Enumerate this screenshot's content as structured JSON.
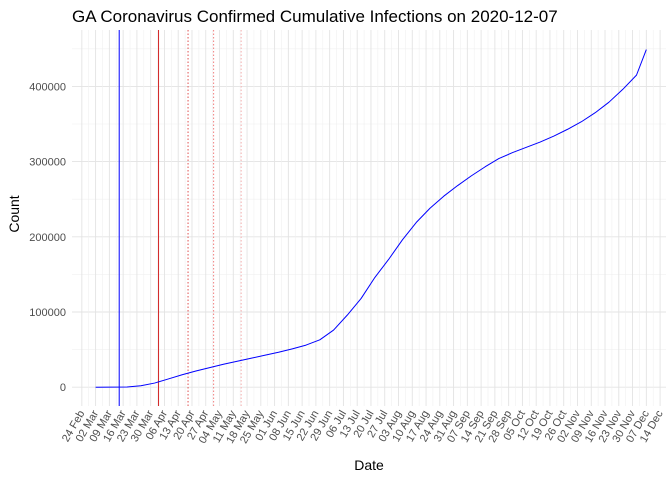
{
  "chart_data": {
    "type": "line",
    "title": "GA Coronavirus Confirmed Cumulative Infections on 2020-12-07",
    "xlabel": "Date",
    "ylabel": "Count",
    "x_range": [
      "2020-02-19",
      "2020-12-17"
    ],
    "ylim": [
      -25000,
      475000
    ],
    "y_ticks": [
      0,
      100000,
      200000,
      300000,
      400000
    ],
    "y_tick_labels": [
      "0",
      "100000",
      "200000",
      "300000",
      "400000"
    ],
    "x_tick_labels": [
      "24 Feb",
      "02 Mar",
      "09 Mar",
      "16 Mar",
      "23 Mar",
      "30 Mar",
      "06 Apr",
      "13 Apr",
      "20 Apr",
      "27 Apr",
      "04 May",
      "11 May",
      "18 May",
      "25 May",
      "01 Jun",
      "08 Jun",
      "15 Jun",
      "22 Jun",
      "29 Jun",
      "06 Jul",
      "13 Jul",
      "20 Jul",
      "27 Jul",
      "03 Aug",
      "10 Aug",
      "17 Aug",
      "24 Aug",
      "31 Aug",
      "07 Sep",
      "14 Sep",
      "21 Sep",
      "28 Sep",
      "05 Oct",
      "12 Oct",
      "19 Oct",
      "26 Oct",
      "02 Nov",
      "09 Nov",
      "16 Nov",
      "23 Nov",
      "30 Nov",
      "07 Dec",
      "14 Dec"
    ],
    "x_tick_dates": [
      "2020-02-24",
      "2020-03-02",
      "2020-03-09",
      "2020-03-16",
      "2020-03-23",
      "2020-03-30",
      "2020-04-06",
      "2020-04-13",
      "2020-04-20",
      "2020-04-27",
      "2020-05-04",
      "2020-05-11",
      "2020-05-18",
      "2020-05-25",
      "2020-06-01",
      "2020-06-08",
      "2020-06-15",
      "2020-06-22",
      "2020-06-29",
      "2020-07-06",
      "2020-07-13",
      "2020-07-20",
      "2020-07-27",
      "2020-08-03",
      "2020-08-10",
      "2020-08-17",
      "2020-08-24",
      "2020-08-31",
      "2020-09-07",
      "2020-09-14",
      "2020-09-21",
      "2020-09-28",
      "2020-10-05",
      "2020-10-12",
      "2020-10-19",
      "2020-10-26",
      "2020-11-02",
      "2020-11-09",
      "2020-11-16",
      "2020-11-23",
      "2020-11-30",
      "2020-12-07",
      "2020-12-14"
    ],
    "grid": true,
    "legend": "none",
    "series": [
      {
        "color": "#0000ff",
        "points": [
          [
            "2020-03-02",
            0
          ],
          [
            "2020-03-10",
            20
          ],
          [
            "2020-03-18",
            200
          ],
          [
            "2020-03-25",
            2000
          ],
          [
            "2020-04-01",
            5500
          ],
          [
            "2020-04-08",
            11000
          ],
          [
            "2020-04-15",
            16500
          ],
          [
            "2020-04-22",
            21500
          ],
          [
            "2020-04-29",
            26000
          ],
          [
            "2020-05-06",
            30500
          ],
          [
            "2020-05-13",
            34500
          ],
          [
            "2020-05-20",
            38500
          ],
          [
            "2020-05-27",
            42500
          ],
          [
            "2020-06-03",
            46500
          ],
          [
            "2020-06-10",
            51000
          ],
          [
            "2020-06-17",
            56000
          ],
          [
            "2020-06-24",
            63000
          ],
          [
            "2020-07-01",
            76000
          ],
          [
            "2020-07-08",
            96000
          ],
          [
            "2020-07-15",
            118000
          ],
          [
            "2020-07-22",
            146000
          ],
          [
            "2020-07-29",
            170000
          ],
          [
            "2020-08-05",
            196000
          ],
          [
            "2020-08-12",
            219000
          ],
          [
            "2020-08-19",
            238000
          ],
          [
            "2020-08-26",
            254000
          ],
          [
            "2020-09-02",
            268000
          ],
          [
            "2020-09-09",
            281000
          ],
          [
            "2020-09-16",
            293000
          ],
          [
            "2020-09-23",
            304000
          ],
          [
            "2020-09-30",
            312000
          ],
          [
            "2020-10-07",
            319000
          ],
          [
            "2020-10-14",
            326000
          ],
          [
            "2020-10-21",
            334000
          ],
          [
            "2020-10-28",
            343000
          ],
          [
            "2020-11-04",
            353000
          ],
          [
            "2020-11-11",
            365000
          ],
          [
            "2020-11-18",
            379000
          ],
          [
            "2020-11-25",
            396000
          ],
          [
            "2020-12-02",
            415000
          ],
          [
            "2020-12-07",
            449000
          ]
        ]
      }
    ],
    "vertical_lines": [
      {
        "date": "2020-03-14",
        "color": "#0000ff",
        "style": "solid"
      },
      {
        "date": "2020-04-03",
        "color": "#d22222",
        "style": "solid"
      },
      {
        "date": "2020-04-18",
        "color": "#e05050",
        "style": "dotted"
      },
      {
        "date": "2020-05-01",
        "color": "#f08080",
        "style": "dotted"
      },
      {
        "date": "2020-05-15",
        "color": "#f4b0b0",
        "style": "dotted"
      }
    ]
  }
}
